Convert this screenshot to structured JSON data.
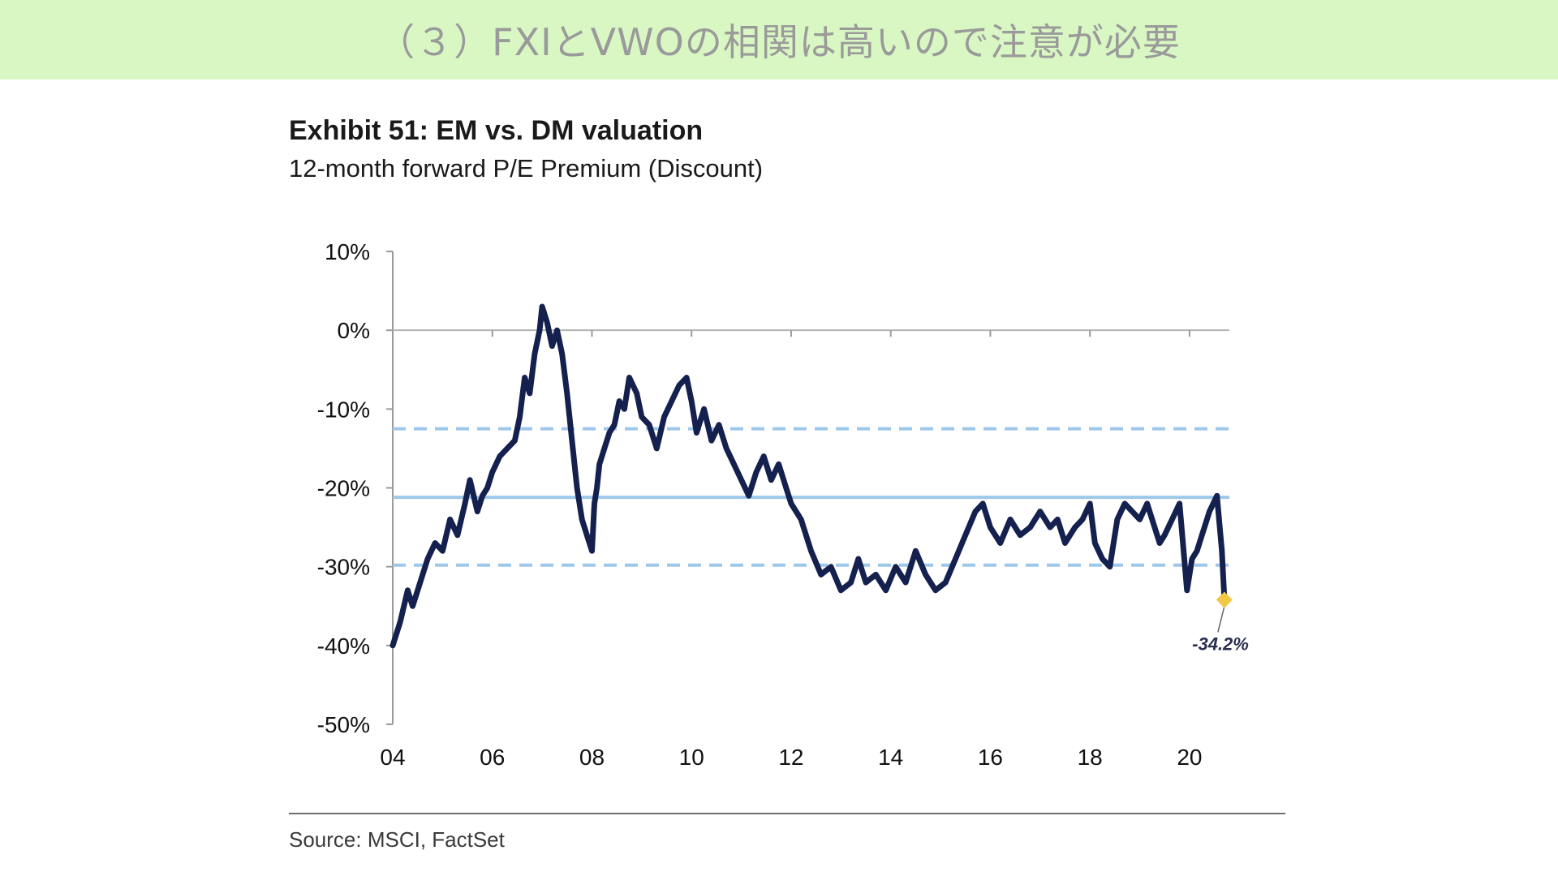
{
  "banner": {
    "title": "（３）FXIとVWOの相関は高いので注意が必要"
  },
  "exhibit": {
    "title": "Exhibit 51: EM vs. DM valuation",
    "subtitle": "12-month forward P/E Premium (Discount)",
    "source": "Source: MSCI, FactSet"
  },
  "colors": {
    "banner_bg": "#d9f7c3",
    "series": "#14214f",
    "reference_lines": "#9ec8ea",
    "last_point_marker": "#f2c744"
  },
  "chart_data": {
    "type": "line",
    "title": "Exhibit 51: EM vs. DM valuation",
    "subtitle": "12-month forward P/E Premium (Discount)",
    "xlabel": "",
    "ylabel": "",
    "xlim": [
      2004,
      2020.8
    ],
    "ylim": [
      -50,
      10
    ],
    "x_ticks": [
      2004,
      2006,
      2008,
      2010,
      2012,
      2014,
      2016,
      2018,
      2020
    ],
    "x_tick_labels": [
      "04",
      "06",
      "08",
      "10",
      "12",
      "14",
      "16",
      "18",
      "20"
    ],
    "y_ticks": [
      10,
      0,
      -10,
      -20,
      -30,
      -40,
      -50
    ],
    "y_tick_labels": [
      "10%",
      "0%",
      "-10%",
      "-20%",
      "-30%",
      "-40%",
      "-50%"
    ],
    "grid": false,
    "reference_lines": [
      {
        "style": "solid",
        "y": -21.2
      },
      {
        "style": "dashed",
        "y": -12.5
      },
      {
        "style": "dashed",
        "y": -29.8
      }
    ],
    "series": [
      {
        "x": [
          2004.0,
          2004.15,
          2004.3,
          2004.4,
          2004.55,
          2004.7,
          2004.85,
          2005.0,
          2005.15,
          2005.3,
          2005.45,
          2005.55,
          2005.7,
          2005.8,
          2005.9,
          2006.0,
          2006.15,
          2006.3,
          2006.45,
          2006.55,
          2006.65,
          2006.75,
          2006.85,
          2006.95,
          2007.0,
          2007.1,
          2007.2,
          2007.3,
          2007.4,
          2007.5,
          2007.6,
          2007.7,
          2007.8,
          2007.9,
          2007.95,
          2008.0,
          2008.05,
          2008.1,
          2008.15,
          2008.25,
          2008.35,
          2008.45,
          2008.55,
          2008.65,
          2008.75,
          2008.9,
          2009.0,
          2009.15,
          2009.3,
          2009.45,
          2009.6,
          2009.75,
          2009.9,
          2010.0,
          2010.1,
          2010.25,
          2010.4,
          2010.55,
          2010.7,
          2010.85,
          2011.0,
          2011.15,
          2011.3,
          2011.45,
          2011.6,
          2011.75,
          2011.9,
          2012.0,
          2012.2,
          2012.4,
          2012.6,
          2012.8,
          2013.0,
          2013.2,
          2013.35,
          2013.5,
          2013.7,
          2013.9,
          2014.1,
          2014.3,
          2014.5,
          2014.7,
          2014.9,
          2015.1,
          2015.3,
          2015.5,
          2015.7,
          2015.85,
          2016.0,
          2016.2,
          2016.4,
          2016.6,
          2016.8,
          2017.0,
          2017.2,
          2017.35,
          2017.5,
          2017.7,
          2017.85,
          2018.0,
          2018.1,
          2018.25,
          2018.4,
          2018.55,
          2018.7,
          2018.85,
          2019.0,
          2019.15,
          2019.3,
          2019.4,
          2019.5,
          2019.65,
          2019.8,
          2019.95,
          2020.05,
          2020.15,
          2020.25,
          2020.4,
          2020.55,
          2020.65,
          2020.7
        ],
        "values": [
          -40,
          -37,
          -33,
          -35,
          -32,
          -29,
          -27,
          -28,
          -24,
          -26,
          -22,
          -19,
          -23,
          -21,
          -20,
          -18,
          -16,
          -15,
          -14,
          -11,
          -6,
          -8,
          -3,
          0,
          3,
          1,
          -2,
          0,
          -3,
          -8,
          -14,
          -20,
          -24,
          -26,
          -27,
          -28,
          -22,
          -20,
          -17,
          -15,
          -13,
          -12,
          -9,
          -10,
          -6,
          -8,
          -11,
          -12,
          -15,
          -11,
          -9,
          -7,
          -6,
          -9,
          -13,
          -10,
          -14,
          -12,
          -15,
          -17,
          -19,
          -21,
          -18,
          -16,
          -19,
          -17,
          -20,
          -22,
          -24,
          -28,
          -31,
          -30,
          -33,
          -32,
          -29,
          -32,
          -31,
          -33,
          -30,
          -32,
          -28,
          -31,
          -33,
          -32,
          -29,
          -26,
          -23,
          -22,
          -25,
          -27,
          -24,
          -26,
          -25,
          -23,
          -25,
          -24,
          -27,
          -25,
          -24,
          -22,
          -27,
          -29,
          -30,
          -24,
          -22,
          -23,
          -24,
          -22,
          -25,
          -27,
          -26,
          -24,
          -22,
          -33,
          -29,
          -28,
          -26,
          -23,
          -21,
          -28,
          -34.2
        ]
      }
    ],
    "annotations": [
      {
        "text": "-34.2%",
        "x": 2020.7,
        "y": -34.2
      }
    ]
  }
}
